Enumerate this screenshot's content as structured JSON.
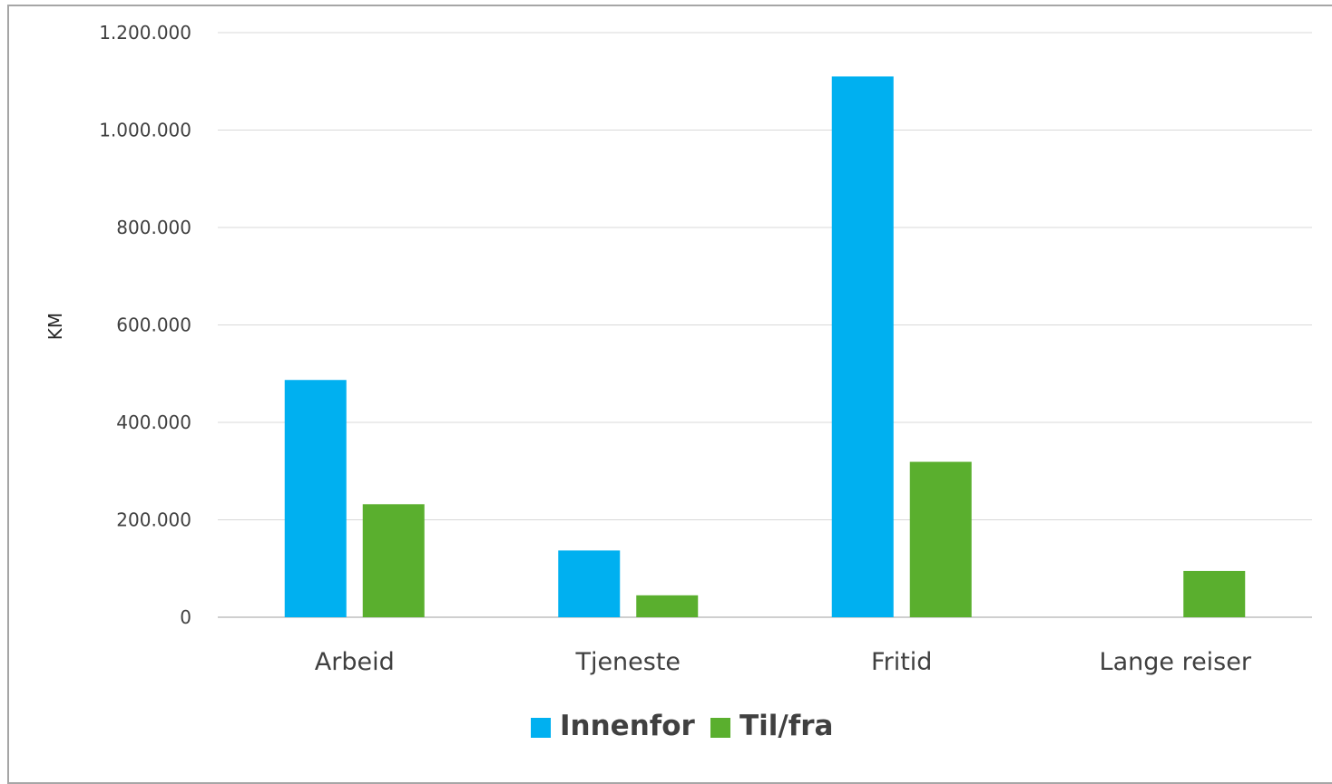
{
  "chart_data": {
    "type": "bar",
    "title": "",
    "xlabel": "",
    "ylabel": "KM",
    "ylim": [
      0,
      1200000
    ],
    "yticks": [
      0,
      200000,
      400000,
      600000,
      800000,
      1000000,
      1200000
    ],
    "ytick_labels": [
      "0",
      "200.000",
      "400.000",
      "600.000",
      "800.000",
      "1.000.000",
      "1.200.000"
    ],
    "categories": [
      "Arbeid",
      "Tjeneste",
      "Fritid",
      "Lange reiser"
    ],
    "series": [
      {
        "name": "Innenfor",
        "color": "#00b0f0",
        "values": [
          487000,
          137000,
          1110000,
          0
        ]
      },
      {
        "name": "Til/fra",
        "color": "#5aaf2e",
        "values": [
          232000,
          45000,
          319000,
          95000
        ]
      }
    ],
    "grid": true,
    "legend_position": "bottom"
  }
}
